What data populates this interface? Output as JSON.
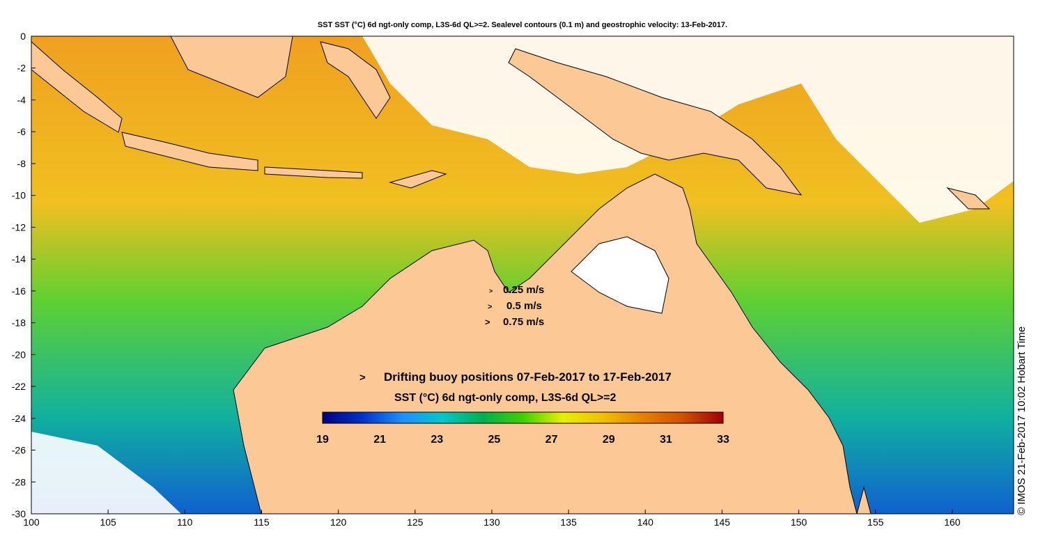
{
  "title": "SST SST (°C) 6d ngt-only comp, L3S-6d QL>=2. Sealevel contours (0.1 m) and geostrophic velocity: 13-Feb-2017.",
  "axes": {
    "lon_min": 100,
    "lon_max": 164,
    "lat_min": -30,
    "lat_max": 0,
    "x_ticks": [
      100,
      105,
      110,
      115,
      120,
      125,
      130,
      135,
      140,
      145,
      150,
      155,
      160
    ],
    "y_ticks": [
      0,
      -2,
      -4,
      -6,
      -8,
      -10,
      -12,
      -14,
      -16,
      -18,
      -20,
      -22,
      -24,
      -26,
      -28,
      -30
    ]
  },
  "velocity_legend": [
    {
      "label": "0.25 m/s"
    },
    {
      "label": "0.5 m/s"
    },
    {
      "label": "0.75 m/s"
    }
  ],
  "buoy_legend": {
    "symbol": ">",
    "label": "Drifting buoy positions 07-Feb-2017 to 17-Feb-2017",
    "color": "#e000e0"
  },
  "colorbar": {
    "title": "SST (°C) 6d ngt-only comp, L3S-6d QL>=2",
    "min": 19,
    "max": 33,
    "ticks": [
      19,
      21,
      23,
      25,
      27,
      29,
      31,
      33
    ],
    "stops": [
      "#000080",
      "#0033cc",
      "#1e90ff",
      "#00c8c8",
      "#00b050",
      "#40d000",
      "#e8f000",
      "#f0c000",
      "#e88000",
      "#d05000",
      "#a00000"
    ]
  },
  "land_color": "#fcc896",
  "copyright": "© IMOS 21-Feb-2017 10:02 Hobart Time"
}
